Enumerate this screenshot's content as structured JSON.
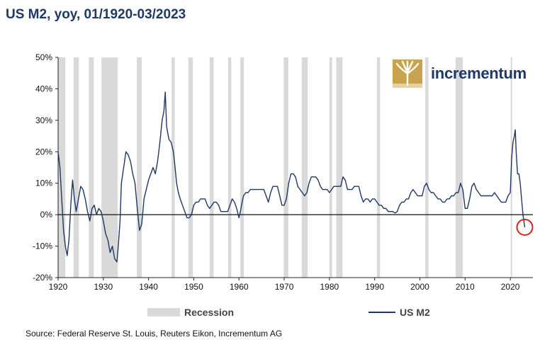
{
  "chart_data": {
    "type": "line",
    "title": "US M2, yoy, 01/1920-03/2023",
    "source": "Source: Federal Reserve St. Louis, Reuters Eikon, Incrementum AG",
    "xlim": [
      1920,
      2025
    ],
    "ylim": [
      -20,
      50
    ],
    "x_ticks": [
      1920,
      1930,
      1940,
      1950,
      1960,
      1970,
      1980,
      1990,
      2000,
      2010,
      2020
    ],
    "y_ticks": [
      -20,
      -10,
      0,
      10,
      20,
      30,
      40,
      50
    ],
    "y_tick_labels": [
      "-20%",
      "-10%",
      "0%",
      "10%",
      "20%",
      "30%",
      "40%",
      "50%"
    ],
    "legend": {
      "placement": "bottom",
      "recession_label": "Recession",
      "series_label": "US M2"
    },
    "colors": {
      "series": "#1f3864",
      "recession": "#d9d9d9",
      "highlight": "#e02020",
      "title": "#1f3864"
    },
    "recessions": [
      [
        1920.0,
        1921.6
      ],
      [
        1923.4,
        1924.6
      ],
      [
        1926.8,
        1927.9
      ],
      [
        1929.6,
        1933.2
      ],
      [
        1937.4,
        1938.5
      ],
      [
        1945.1,
        1945.8
      ],
      [
        1948.8,
        1949.8
      ],
      [
        1953.5,
        1954.4
      ],
      [
        1957.6,
        1958.3
      ],
      [
        1960.3,
        1961.1
      ],
      [
        1969.9,
        1970.9
      ],
      [
        1973.9,
        1975.2
      ],
      [
        1980.0,
        1980.6
      ],
      [
        1981.5,
        1982.9
      ],
      [
        1990.5,
        1991.2
      ],
      [
        2001.2,
        2001.9
      ],
      [
        2007.9,
        2009.5
      ],
      [
        2020.1,
        2020.4
      ]
    ],
    "series": [
      {
        "name": "US M2",
        "points": [
          [
            1920.0,
            20
          ],
          [
            1920.4,
            15
          ],
          [
            1920.8,
            5
          ],
          [
            1921.2,
            -5
          ],
          [
            1921.6,
            -10
          ],
          [
            1922.0,
            -13
          ],
          [
            1922.4,
            -8
          ],
          [
            1922.8,
            3
          ],
          [
            1923.2,
            11
          ],
          [
            1923.6,
            5
          ],
          [
            1924.0,
            1
          ],
          [
            1924.5,
            5
          ],
          [
            1925.0,
            9
          ],
          [
            1925.5,
            8
          ],
          [
            1926.0,
            5
          ],
          [
            1926.5,
            1
          ],
          [
            1927.0,
            -2
          ],
          [
            1927.5,
            2
          ],
          [
            1928.0,
            3
          ],
          [
            1928.5,
            0
          ],
          [
            1929.0,
            2
          ],
          [
            1929.5,
            1
          ],
          [
            1930.0,
            -2
          ],
          [
            1930.5,
            -6
          ],
          [
            1931.0,
            -8
          ],
          [
            1931.5,
            -12
          ],
          [
            1932.0,
            -10
          ],
          [
            1932.5,
            -14
          ],
          [
            1933.0,
            -15
          ],
          [
            1933.3,
            -10
          ],
          [
            1933.7,
            -2
          ],
          [
            1934.0,
            10
          ],
          [
            1934.5,
            15
          ],
          [
            1935.0,
            20
          ],
          [
            1935.5,
            19
          ],
          [
            1936.0,
            17
          ],
          [
            1936.5,
            13
          ],
          [
            1937.0,
            10
          ],
          [
            1937.5,
            2
          ],
          [
            1938.0,
            -5
          ],
          [
            1938.5,
            -3
          ],
          [
            1939.0,
            5
          ],
          [
            1939.5,
            8
          ],
          [
            1940.0,
            11
          ],
          [
            1940.5,
            13
          ],
          [
            1941.0,
            15
          ],
          [
            1941.5,
            13
          ],
          [
            1942.0,
            17
          ],
          [
            1942.5,
            23
          ],
          [
            1943.0,
            30
          ],
          [
            1943.4,
            33
          ],
          [
            1943.7,
            39
          ],
          [
            1944.0,
            28
          ],
          [
            1944.5,
            24
          ],
          [
            1945.0,
            23
          ],
          [
            1945.5,
            20
          ],
          [
            1945.8,
            16
          ],
          [
            1946.2,
            10
          ],
          [
            1946.6,
            7
          ],
          [
            1947.0,
            5
          ],
          [
            1947.5,
            3
          ],
          [
            1948.0,
            1
          ],
          [
            1948.5,
            -1
          ],
          [
            1949.0,
            -1
          ],
          [
            1949.5,
            0
          ],
          [
            1950.0,
            3
          ],
          [
            1950.5,
            4
          ],
          [
            1951.0,
            4
          ],
          [
            1951.5,
            5
          ],
          [
            1952.0,
            5
          ],
          [
            1952.5,
            5
          ],
          [
            1953.0,
            3
          ],
          [
            1953.5,
            2
          ],
          [
            1954.0,
            3
          ],
          [
            1954.5,
            4
          ],
          [
            1955.0,
            4
          ],
          [
            1955.5,
            3
          ],
          [
            1956.0,
            1
          ],
          [
            1956.5,
            1
          ],
          [
            1957.0,
            1
          ],
          [
            1957.5,
            1
          ],
          [
            1958.0,
            3
          ],
          [
            1958.5,
            5
          ],
          [
            1959.0,
            4
          ],
          [
            1959.5,
            2
          ],
          [
            1960.0,
            -1
          ],
          [
            1960.3,
            1
          ],
          [
            1960.7,
            4
          ],
          [
            1961.0,
            6
          ],
          [
            1961.5,
            7
          ],
          [
            1962.0,
            7
          ],
          [
            1962.5,
            8
          ],
          [
            1963.0,
            8
          ],
          [
            1963.5,
            8
          ],
          [
            1964.0,
            8
          ],
          [
            1964.5,
            8
          ],
          [
            1965.0,
            8
          ],
          [
            1965.5,
            8
          ],
          [
            1966.0,
            6
          ],
          [
            1966.5,
            4
          ],
          [
            1967.0,
            7
          ],
          [
            1967.5,
            9
          ],
          [
            1968.0,
            9
          ],
          [
            1968.5,
            9
          ],
          [
            1969.0,
            6
          ],
          [
            1969.5,
            3
          ],
          [
            1970.0,
            3
          ],
          [
            1970.5,
            5
          ],
          [
            1971.0,
            10
          ],
          [
            1971.5,
            13
          ],
          [
            1972.0,
            13
          ],
          [
            1972.5,
            12
          ],
          [
            1973.0,
            9
          ],
          [
            1973.5,
            8
          ],
          [
            1974.0,
            7
          ],
          [
            1974.5,
            6
          ],
          [
            1975.0,
            7
          ],
          [
            1975.5,
            10
          ],
          [
            1976.0,
            12
          ],
          [
            1976.5,
            12
          ],
          [
            1977.0,
            12
          ],
          [
            1977.5,
            11
          ],
          [
            1978.0,
            9
          ],
          [
            1978.5,
            8
          ],
          [
            1979.0,
            8
          ],
          [
            1979.5,
            8
          ],
          [
            1980.0,
            7
          ],
          [
            1980.5,
            8
          ],
          [
            1981.0,
            9
          ],
          [
            1981.5,
            9
          ],
          [
            1982.0,
            9
          ],
          [
            1982.5,
            9
          ],
          [
            1983.0,
            12
          ],
          [
            1983.5,
            11
          ],
          [
            1984.0,
            8
          ],
          [
            1984.5,
            8
          ],
          [
            1985.0,
            8
          ],
          [
            1985.5,
            9
          ],
          [
            1986.0,
            9
          ],
          [
            1986.5,
            9
          ],
          [
            1987.0,
            6
          ],
          [
            1987.5,
            4
          ],
          [
            1988.0,
            5
          ],
          [
            1988.5,
            5
          ],
          [
            1989.0,
            4
          ],
          [
            1989.5,
            5
          ],
          [
            1990.0,
            5
          ],
          [
            1990.5,
            4
          ],
          [
            1991.0,
            3
          ],
          [
            1991.5,
            3
          ],
          [
            1992.0,
            2
          ],
          [
            1992.5,
            2
          ],
          [
            1993.0,
            1
          ],
          [
            1993.5,
            1
          ],
          [
            1994.0,
            1
          ],
          [
            1994.5,
            0.5
          ],
          [
            1995.0,
            1
          ],
          [
            1995.5,
            3
          ],
          [
            1996.0,
            4
          ],
          [
            1996.5,
            4
          ],
          [
            1997.0,
            5
          ],
          [
            1997.5,
            5
          ],
          [
            1998.0,
            7
          ],
          [
            1998.5,
            8
          ],
          [
            1999.0,
            7
          ],
          [
            1999.5,
            6
          ],
          [
            2000.0,
            6
          ],
          [
            2000.5,
            6
          ],
          [
            2001.0,
            9
          ],
          [
            2001.5,
            10
          ],
          [
            2002.0,
            8
          ],
          [
            2002.5,
            7
          ],
          [
            2003.0,
            7
          ],
          [
            2003.5,
            6
          ],
          [
            2004.0,
            5
          ],
          [
            2004.5,
            5
          ],
          [
            2005.0,
            4
          ],
          [
            2005.5,
            4
          ],
          [
            2006.0,
            5
          ],
          [
            2006.5,
            5
          ],
          [
            2007.0,
            6
          ],
          [
            2007.5,
            6
          ],
          [
            2008.0,
            7
          ],
          [
            2008.5,
            7
          ],
          [
            2009.0,
            10
          ],
          [
            2009.5,
            8
          ],
          [
            2010.0,
            2
          ],
          [
            2010.5,
            2
          ],
          [
            2011.0,
            5
          ],
          [
            2011.5,
            9
          ],
          [
            2012.0,
            10
          ],
          [
            2012.5,
            8
          ],
          [
            2013.0,
            7
          ],
          [
            2013.5,
            6
          ],
          [
            2014.0,
            6
          ],
          [
            2014.5,
            6
          ],
          [
            2015.0,
            6
          ],
          [
            2015.5,
            6
          ],
          [
            2016.0,
            6
          ],
          [
            2016.5,
            7
          ],
          [
            2017.0,
            6
          ],
          [
            2017.5,
            5
          ],
          [
            2018.0,
            4
          ],
          [
            2018.5,
            4
          ],
          [
            2019.0,
            4
          ],
          [
            2019.5,
            6
          ],
          [
            2020.0,
            7
          ],
          [
            2020.3,
            18
          ],
          [
            2020.6,
            23
          ],
          [
            2020.9,
            25
          ],
          [
            2021.1,
            27
          ],
          [
            2021.3,
            20
          ],
          [
            2021.6,
            13
          ],
          [
            2021.9,
            13
          ],
          [
            2022.2,
            10
          ],
          [
            2022.5,
            5
          ],
          [
            2022.8,
            0
          ],
          [
            2023.0,
            -2
          ],
          [
            2023.2,
            -4
          ]
        ]
      }
    ]
  },
  "logo": {
    "text": "incrementum"
  }
}
